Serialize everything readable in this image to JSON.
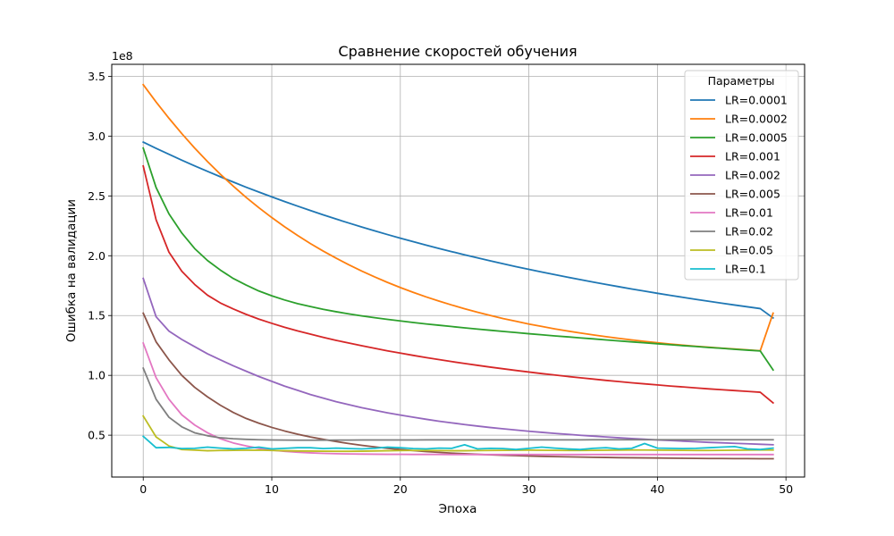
{
  "chart_data": {
    "type": "line",
    "title": "Сравнение скоростей обучения",
    "xlabel": "Эпоха",
    "ylabel": "Ошибка на валидации",
    "y_multiplier_label": "1e8",
    "xlim": [
      -2.45,
      51.45
    ],
    "ylim": [
      0.15,
      3.6
    ],
    "xticks": [
      0,
      10,
      20,
      30,
      40,
      50
    ],
    "yticks": [
      0.5,
      1.0,
      1.5,
      2.0,
      2.5,
      3.0,
      3.5
    ],
    "ytick_labels": [
      "0.5",
      "1.0",
      "1.5",
      "2.0",
      "2.5",
      "3.0",
      "3.5"
    ],
    "grid": true,
    "legend_title": "Параметры",
    "legend_position": "top-right",
    "x": [
      0,
      1,
      2,
      3,
      4,
      5,
      6,
      7,
      8,
      9,
      10,
      11,
      12,
      13,
      14,
      15,
      16,
      17,
      18,
      19,
      20,
      21,
      22,
      23,
      24,
      25,
      26,
      27,
      28,
      29,
      30,
      31,
      32,
      33,
      34,
      35,
      36,
      37,
      38,
      39,
      40,
      41,
      42,
      43,
      44,
      45,
      46,
      47,
      48,
      49
    ],
    "series": [
      {
        "name": "LR=0.0001",
        "color": "#1f77b4",
        "values": [
          2.95,
          2.898,
          2.848,
          2.799,
          2.751,
          2.705,
          2.66,
          2.616,
          2.573,
          2.532,
          2.492,
          2.453,
          2.415,
          2.378,
          2.342,
          2.307,
          2.273,
          2.24,
          2.208,
          2.177,
          2.147,
          2.118,
          2.089,
          2.061,
          2.034,
          2.008,
          1.982,
          1.957,
          1.933,
          1.909,
          1.886,
          1.864,
          1.842,
          1.821,
          1.8,
          1.78,
          1.76,
          1.741,
          1.722,
          1.704,
          1.686,
          1.669,
          1.652,
          1.635,
          1.619,
          1.603,
          1.588,
          1.573,
          1.558,
          1.48
        ]
      },
      {
        "name": "LR=0.0002",
        "color": "#ff7f0e",
        "values": [
          3.43,
          3.285,
          3.149,
          3.021,
          2.9,
          2.787,
          2.681,
          2.582,
          2.488,
          2.401,
          2.319,
          2.242,
          2.17,
          2.102,
          2.039,
          1.98,
          1.924,
          1.872,
          1.823,
          1.777,
          1.734,
          1.694,
          1.656,
          1.621,
          1.588,
          1.557,
          1.528,
          1.501,
          1.475,
          1.452,
          1.429,
          1.409,
          1.389,
          1.371,
          1.354,
          1.338,
          1.323,
          1.309,
          1.296,
          1.284,
          1.273,
          1.262,
          1.252,
          1.243,
          1.235,
          1.227,
          1.22,
          1.213,
          1.206,
          1.52
        ]
      },
      {
        "name": "LR=0.0005",
        "color": "#2ca02c",
        "values": [
          2.9,
          2.57,
          2.35,
          2.19,
          2.06,
          1.96,
          1.88,
          1.81,
          1.755,
          1.705,
          1.665,
          1.63,
          1.6,
          1.575,
          1.552,
          1.532,
          1.514,
          1.497,
          1.482,
          1.468,
          1.455,
          1.442,
          1.43,
          1.419,
          1.408,
          1.397,
          1.387,
          1.377,
          1.367,
          1.358,
          1.348,
          1.339,
          1.33,
          1.322,
          1.313,
          1.305,
          1.296,
          1.288,
          1.28,
          1.272,
          1.264,
          1.256,
          1.248,
          1.241,
          1.233,
          1.226,
          1.218,
          1.211,
          1.204,
          1.045
        ]
      },
      {
        "name": "LR=0.001",
        "color": "#d62728",
        "values": [
          2.75,
          2.3,
          2.03,
          1.87,
          1.76,
          1.67,
          1.605,
          1.555,
          1.51,
          1.47,
          1.435,
          1.402,
          1.372,
          1.345,
          1.318,
          1.293,
          1.27,
          1.248,
          1.226,
          1.205,
          1.186,
          1.167,
          1.149,
          1.132,
          1.115,
          1.099,
          1.084,
          1.069,
          1.055,
          1.041,
          1.028,
          1.015,
          1.003,
          0.991,
          0.98,
          0.969,
          0.958,
          0.948,
          0.938,
          0.929,
          0.92,
          0.911,
          0.903,
          0.895,
          0.887,
          0.88,
          0.873,
          0.866,
          0.859,
          0.77
        ]
      },
      {
        "name": "LR=0.002",
        "color": "#9467bd",
        "values": [
          1.81,
          1.49,
          1.37,
          1.3,
          1.24,
          1.18,
          1.13,
          1.08,
          1.035,
          0.99,
          0.95,
          0.91,
          0.875,
          0.84,
          0.81,
          0.78,
          0.755,
          0.73,
          0.708,
          0.687,
          0.668,
          0.65,
          0.633,
          0.617,
          0.603,
          0.589,
          0.576,
          0.564,
          0.553,
          0.543,
          0.533,
          0.524,
          0.515,
          0.507,
          0.499,
          0.492,
          0.485,
          0.478,
          0.472,
          0.466,
          0.46,
          0.455,
          0.45,
          0.445,
          0.44,
          0.436,
          0.432,
          0.428,
          0.424,
          0.42
        ]
      },
      {
        "name": "LR=0.005",
        "color": "#8c564b",
        "values": [
          1.52,
          1.28,
          1.13,
          1.0,
          0.9,
          0.82,
          0.75,
          0.69,
          0.64,
          0.6,
          0.565,
          0.535,
          0.508,
          0.485,
          0.465,
          0.447,
          0.43,
          0.415,
          0.402,
          0.39,
          0.38,
          0.371,
          0.363,
          0.356,
          0.35,
          0.345,
          0.34,
          0.336,
          0.332,
          0.329,
          0.326,
          0.323,
          0.321,
          0.319,
          0.317,
          0.315,
          0.314,
          0.312,
          0.311,
          0.31,
          0.309,
          0.308,
          0.307,
          0.306,
          0.305,
          0.305,
          0.304,
          0.304,
          0.303,
          0.303
        ]
      },
      {
        "name": "LR=0.01",
        "color": "#e377c2",
        "values": [
          1.27,
          0.98,
          0.8,
          0.67,
          0.585,
          0.52,
          0.47,
          0.435,
          0.41,
          0.39,
          0.375,
          0.365,
          0.357,
          0.352,
          0.348,
          0.345,
          0.343,
          0.342,
          0.341,
          0.34,
          0.34,
          0.339,
          0.339,
          0.339,
          0.338,
          0.338,
          0.338,
          0.338,
          0.338,
          0.338,
          0.338,
          0.338,
          0.338,
          0.338,
          0.338,
          0.338,
          0.338,
          0.338,
          0.338,
          0.338,
          0.338,
          0.338,
          0.338,
          0.338,
          0.338,
          0.338,
          0.338,
          0.338,
          0.338,
          0.338
        ]
      },
      {
        "name": "LR=0.02",
        "color": "#7f7f7f",
        "values": [
          1.06,
          0.8,
          0.65,
          0.57,
          0.52,
          0.495,
          0.478,
          0.47,
          0.465,
          0.462,
          0.46,
          0.459,
          0.458,
          0.458,
          0.458,
          0.459,
          0.459,
          0.46,
          0.46,
          0.46,
          0.46,
          0.46,
          0.461,
          0.461,
          0.461,
          0.461,
          0.461,
          0.461,
          0.461,
          0.461,
          0.461,
          0.461,
          0.461,
          0.461,
          0.461,
          0.462,
          0.462,
          0.462,
          0.462,
          0.462,
          0.462,
          0.462,
          0.462,
          0.462,
          0.462,
          0.462,
          0.462,
          0.462,
          0.462,
          0.462
        ]
      },
      {
        "name": "LR=0.05",
        "color": "#bcbd22",
        "values": [
          0.66,
          0.485,
          0.41,
          0.38,
          0.375,
          0.37,
          0.372,
          0.373,
          0.374,
          0.375,
          0.372,
          0.37,
          0.368,
          0.367,
          0.366,
          0.365,
          0.365,
          0.366,
          0.368,
          0.37,
          0.371,
          0.372,
          0.372,
          0.371,
          0.37,
          0.37,
          0.371,
          0.372,
          0.373,
          0.374,
          0.375,
          0.374,
          0.373,
          0.372,
          0.372,
          0.373,
          0.374,
          0.375,
          0.376,
          0.376,
          0.375,
          0.374,
          0.373,
          0.372,
          0.372,
          0.373,
          0.374,
          0.375,
          0.376,
          0.376
        ]
      },
      {
        "name": "LR=0.1",
        "color": "#17becf",
        "values": [
          0.49,
          0.395,
          0.398,
          0.388,
          0.39,
          0.4,
          0.392,
          0.385,
          0.39,
          0.4,
          0.385,
          0.39,
          0.395,
          0.395,
          0.388,
          0.392,
          0.388,
          0.385,
          0.39,
          0.4,
          0.395,
          0.388,
          0.385,
          0.392,
          0.39,
          0.42,
          0.385,
          0.39,
          0.388,
          0.38,
          0.39,
          0.4,
          0.392,
          0.385,
          0.38,
          0.39,
          0.395,
          0.385,
          0.39,
          0.43,
          0.392,
          0.39,
          0.388,
          0.39,
          0.395,
          0.4,
          0.405,
          0.385,
          0.38,
          0.392
        ]
      }
    ]
  }
}
